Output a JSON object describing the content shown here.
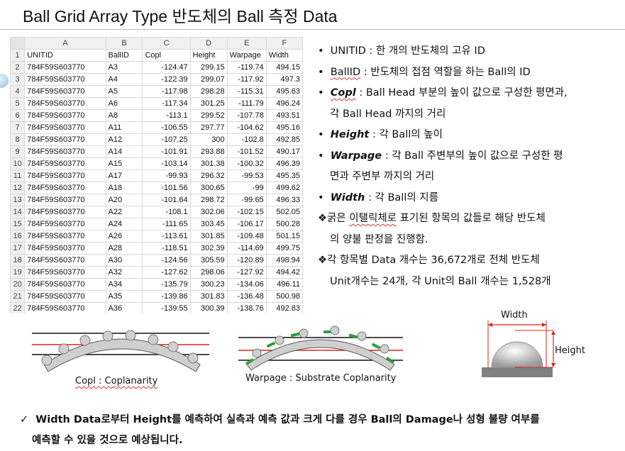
{
  "title": "Ball Grid Array Type 반도체의 Ball 측정 Data",
  "sheet": {
    "columns": [
      "A",
      "B",
      "C",
      "D",
      "E",
      "F"
    ],
    "rows": [
      [
        "1",
        "UNITID",
        "BallID",
        "Copl",
        "Height",
        "Warpage",
        "Width"
      ],
      [
        "2",
        "784F59S603770",
        "A3",
        "-124.47",
        "299.15",
        "-119.74",
        "494.15"
      ],
      [
        "3",
        "784F59S603770",
        "A4",
        "-122.39",
        "299.07",
        "-117.92",
        "497.3"
      ],
      [
        "4",
        "784F59S603770",
        "A5",
        "-117.98",
        "298.28",
        "-115.31",
        "495.63"
      ],
      [
        "5",
        "784F59S603770",
        "A6",
        "-117.34",
        "301.25",
        "-111.79",
        "496.24"
      ],
      [
        "6",
        "784F59S603770",
        "A8",
        "-113.1",
        "299.52",
        "-107.78",
        "493.51"
      ],
      [
        "7",
        "784F59S603770",
        "A11",
        "-106.55",
        "297.77",
        "-104.62",
        "495.16"
      ],
      [
        "8",
        "784F59S603770",
        "A12",
        "-107.25",
        "300",
        "-102.8",
        "492.85"
      ],
      [
        "9",
        "784F59S603770",
        "A14",
        "-101.91",
        "293.88",
        "-101.52",
        "490.17"
      ],
      [
        "10",
        "784F59S603770",
        "A15",
        "-103.14",
        "301.38",
        "-100.32",
        "496.39"
      ],
      [
        "11",
        "784F59S603770",
        "A17",
        "-99.93",
        "296.32",
        "-99.53",
        "495.35"
      ],
      [
        "12",
        "784F59S603770",
        "A18",
        "-101.56",
        "300.65",
        "-99",
        "499.62"
      ],
      [
        "13",
        "784F59S603770",
        "A20",
        "-101.64",
        "298.72",
        "-99.65",
        "496.33"
      ],
      [
        "14",
        "784F59S603770",
        "A22",
        "-108.1",
        "302.06",
        "-102.15",
        "502.05"
      ],
      [
        "15",
        "784F59S603770",
        "A24",
        "-111.65",
        "303.45",
        "-106.17",
        "500.28"
      ],
      [
        "16",
        "784F59S603770",
        "A26",
        "-113.61",
        "301.85",
        "-109.48",
        "501.15"
      ],
      [
        "17",
        "784F59S603770",
        "A28",
        "-118.51",
        "302.39",
        "-114.69",
        "499.75"
      ],
      [
        "18",
        "784F59S603770",
        "A30",
        "-124.56",
        "305.59",
        "-120.89",
        "498.94"
      ],
      [
        "19",
        "784F59S603770",
        "A32",
        "-127.62",
        "298.06",
        "-127.92",
        "494.42"
      ],
      [
        "20",
        "784F59S603770",
        "A34",
        "-135.79",
        "300.23",
        "-134.06",
        "496.11"
      ],
      [
        "21",
        "784F59S603770",
        "A35",
        "-139.86",
        "301.83",
        "-136.48",
        "500.98"
      ],
      [
        "22",
        "784F59S603770",
        "A36",
        "-139.55",
        "300.39",
        "-138.76",
        "492.83"
      ]
    ]
  },
  "notes": {
    "l1": "UNITID : 한 개의 반도체의 고유 ID",
    "l2a": "BallID",
    "l2b": " : 반도체의 접점 역할을 하는 Ball의 ID",
    "l3a": "Copl",
    "l3b": " : Ball Head 부분의 높이 값으로 구성한 평면과,",
    "l3c": "각 Ball Head 까지의 거리",
    "l4a": "Height",
    "l4b": " : 각 Ball의 높이",
    "l5a": "Warpage",
    "l5b": " : 각 Ball 주변부의 높이 값으로 구성한 평",
    "l5c": "면과 주변부 까지의 거리",
    "l6a": "Width",
    "l6b": "  : 각 Ball의 지름",
    "l7a": "굵은 ",
    "l7b": "이탤릭체로",
    "l7c": " 표기된 항목의 값들로 해당 반도체",
    "l7d": "의 양불 판정을 진행함.",
    "l8": "각 항목별 Data 개수는 36,672개로 전체 반도체",
    "l8b": "Unit개수는 24개, 각 Unit의 Ball 개수는 1,528개"
  },
  "captions": {
    "copl": "Copl : Coplanarity",
    "warpage": "Warpage : Substrate Coplanarity",
    "width": "Width",
    "height": "Height"
  },
  "bottom": {
    "line1": "Width Data로부터 Height를 예측하여 실측과 예측 값과 크게 다를 경우 Ball의 Damage나 성형 불량  여부를",
    "line2": "예측할 수 있을 것으로 예상됩니다."
  },
  "icons": {
    "bullet": "•",
    "diamond": "❖",
    "check": "✓"
  }
}
